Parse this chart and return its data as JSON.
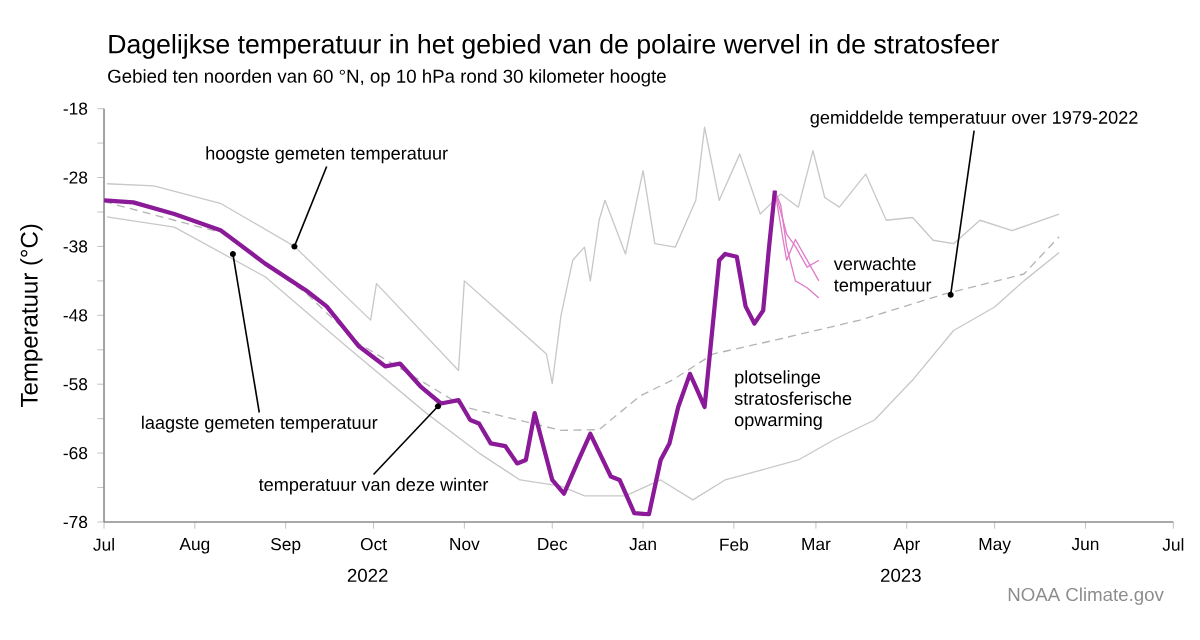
{
  "chart_data": {
    "type": "line",
    "title": "Dagelijkse temperatuur in het gebied van de polaire wervel in de stratosfeer",
    "subtitle": "Gebied ten noorden van 60 °N, op 10 hPa rond 30 kilometer hoogte",
    "ylabel": "Temperatuur (°C)",
    "xlim": [
      "2022-07-01",
      "2023-07-01"
    ],
    "ylim": [
      -78,
      -18
    ],
    "xticks": [
      {
        "value": "2022-07-01",
        "label": "Jul"
      },
      {
        "value": "2022-08-01",
        "label": "Aug"
      },
      {
        "value": "2022-09-01",
        "label": "Sep"
      },
      {
        "value": "2022-10-01",
        "label": "Oct"
      },
      {
        "value": "2022-11-01",
        "label": "Nov"
      },
      {
        "value": "2022-12-01",
        "label": "Dec"
      },
      {
        "value": "2023-01-01",
        "label": "Jan"
      },
      {
        "value": "2023-02-01",
        "label": "Feb"
      },
      {
        "value": "2023-03-01",
        "label": "Mar"
      },
      {
        "value": "2023-04-01",
        "label": "Apr"
      },
      {
        "value": "2023-05-01",
        "label": "May"
      },
      {
        "value": "2023-06-01",
        "label": "Jun"
      },
      {
        "value": "2023-07-01",
        "label": "Jul"
      }
    ],
    "yticks": [
      -78,
      {
        "value": -73,
        "label": null
      },
      -68,
      {
        "value": -63,
        "label": null
      },
      -58,
      {
        "value": -53,
        "label": null
      },
      -48,
      {
        "value": -43,
        "label": null
      },
      -38,
      {
        "value": -33,
        "label": null
      },
      -28,
      {
        "value": -23,
        "label": null
      },
      -18
    ],
    "series": [
      {
        "color": "#c8c8c8",
        "x": [
          "2022-07-02",
          "2022-07-18",
          "2022-08-10",
          "2022-09-04",
          "2022-09-30",
          "2022-10-02",
          "2022-10-30",
          "2022-11-01",
          "2022-11-29",
          "2022-12-01",
          "2022-12-04",
          "2022-12-08",
          "2022-12-12",
          "2022-12-14",
          "2022-12-17",
          "2022-12-19",
          "2022-12-26",
          "2023-01-01",
          "2023-01-05",
          "2023-01-12",
          "2023-01-19",
          "2023-01-22",
          "2023-01-27",
          "2023-02-03",
          "2023-02-10",
          "2023-02-17",
          "2023-02-23",
          "2023-02-28",
          "2023-03-04",
          "2023-03-09",
          "2023-03-18",
          "2023-03-25",
          "2023-04-03",
          "2023-04-10",
          "2023-04-17",
          "2023-04-26",
          "2023-05-07",
          "2023-05-23"
        ],
        "values": [
          -28.9,
          -29.2,
          -31.8,
          -38,
          -48.7,
          -43.4,
          -56,
          -43,
          -53.6,
          -57.9,
          -48,
          -40,
          -38.1,
          -43,
          -34.2,
          -31.3,
          -39.1,
          -27,
          -37.6,
          -38.1,
          -31.3,
          -20.7,
          -31.3,
          -24.6,
          -33.3,
          -30.4,
          -32.3,
          -24.1,
          -30.9,
          -32.3,
          -27.5,
          -34.2,
          -33.8,
          -37.1,
          -37.6,
          -34.2,
          -35.7,
          -33.3
        ]
      },
      {
        "color": "#c8c8c8",
        "x": [
          "2022-07-02",
          "2022-07-25",
          "2022-08-25",
          "2022-09-22",
          "2022-10-19",
          "2022-11-06",
          "2022-11-20",
          "2022-12-04",
          "2022-12-12",
          "2022-12-26",
          "2023-01-07",
          "2023-01-18",
          "2023-01-29",
          "2023-02-10",
          "2023-02-23",
          "2023-03-07",
          "2023-03-21",
          "2023-04-03",
          "2023-04-17",
          "2023-05-01",
          "2023-05-11",
          "2023-05-23"
        ],
        "values": [
          -33.7,
          -35.2,
          -42.4,
          -52.6,
          -62.2,
          -68,
          -71.9,
          -72.8,
          -74.2,
          -74.2,
          -71.9,
          -74.8,
          -71.9,
          -70.5,
          -69,
          -66.1,
          -63.2,
          -57.4,
          -50.2,
          -46.8,
          -43,
          -38.9
        ]
      },
      {
        "color": "#b4b4b4",
        "line_style": "dashed",
        "x": [
          "2022-07-01",
          "2022-08-10",
          "2022-09-08",
          "2022-09-26",
          "2022-11-01",
          "2022-12-04",
          "2022-12-17",
          "2022-12-31",
          "2023-01-11",
          "2023-01-25",
          "2023-02-15",
          "2023-03-16",
          "2023-04-14",
          "2023-05-11",
          "2023-05-23"
        ],
        "values": [
          -31.5,
          -36,
          -44.8,
          -52.1,
          -61.3,
          -64.7,
          -64.6,
          -59.7,
          -57.4,
          -53.6,
          -51.6,
          -48.7,
          -44.9,
          -42,
          -36.6
        ]
      },
      {
        "color": "#e07cc8",
        "x": [
          "2023-02-15",
          "2023-02-17",
          "2023-02-19",
          "2023-02-22",
          "2023-02-26",
          "2023-03-02"
        ],
        "values": [
          -29.9,
          -33,
          -36.2,
          -38,
          -41,
          -40
        ]
      },
      {
        "color": "#e07cc8",
        "x": [
          "2023-02-15",
          "2023-02-17",
          "2023-02-19",
          "2023-02-22",
          "2023-02-26",
          "2023-03-02"
        ],
        "values": [
          -29.9,
          -32,
          -38,
          -43,
          -44,
          -45.5
        ]
      },
      {
        "color": "#e07cc8",
        "x": [
          "2023-02-15",
          "2023-02-17",
          "2023-02-19",
          "2023-02-22",
          "2023-02-26",
          "2023-03-02"
        ],
        "values": [
          -29.9,
          -35,
          -40,
          -37,
          -40,
          -43
        ]
      },
      {
        "color": "#8b1a99",
        "x": [
          "2022-07-01",
          "2022-07-11",
          "2022-07-25",
          "2022-08-10",
          "2022-08-25",
          "2022-09-08",
          "2022-09-15",
          "2022-09-26",
          "2022-10-05",
          "2022-10-10",
          "2022-10-17",
          "2022-10-24",
          "2022-10-30",
          "2022-11-03",
          "2022-11-06",
          "2022-11-10",
          "2022-11-15",
          "2022-11-19",
          "2022-11-22",
          "2022-11-25",
          "2022-12-01",
          "2022-12-05",
          "2022-12-10",
          "2022-12-14",
          "2022-12-21",
          "2022-12-24",
          "2022-12-29",
          "2023-01-03",
          "2023-01-07",
          "2023-01-10",
          "2023-01-13",
          "2023-01-17",
          "2023-01-19",
          "2023-01-22",
          "2023-01-27",
          "2023-01-29",
          "2023-02-02",
          "2023-02-05",
          "2023-02-08",
          "2023-02-11",
          "2023-02-13",
          "2023-02-15"
        ],
        "values": [
          -31.3,
          -31.6,
          -33.3,
          -35.7,
          -40.5,
          -44.4,
          -46.7,
          -52.5,
          -55.4,
          -55,
          -58.3,
          -60.8,
          -60.3,
          -63.2,
          -63.7,
          -66.6,
          -67,
          -69.5,
          -69,
          -62.2,
          -71.9,
          -73.9,
          -69,
          -65.2,
          -71.4,
          -71.9,
          -76.7,
          -76.9,
          -69,
          -66.6,
          -61.3,
          -56.5,
          -58.4,
          -61.3,
          -40,
          -39.1,
          -39.5,
          -46.7,
          -49.2,
          -47.3,
          -38.1,
          -29.9
        ]
      }
    ],
    "annotations": [
      {
        "text": "hoogste gemeten temperatuur",
        "x": "2022-09-04",
        "y": -38
      },
      {
        "text": "laagste gemeten temperatuur",
        "x": "2022-08-14",
        "y": -39.1
      },
      {
        "text": "temperatuur van deze winter",
        "x": "2022-10-23",
        "y": -61.2
      },
      {
        "text": "gemiddelde temperatuur over 1979-2022",
        "x": "2023-04-16",
        "y": -45
      },
      "verwachte temperatuur",
      "plotselinge stratosferische opwarming",
      "2022",
      "2023",
      "NOAA Climate.gov"
    ]
  }
}
